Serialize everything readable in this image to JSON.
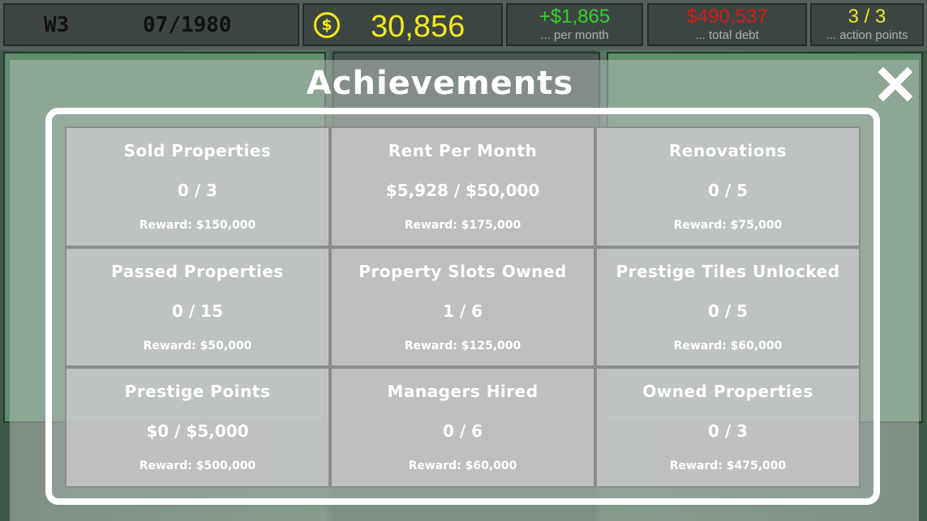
{
  "topbar": {
    "week": "W3",
    "date": "07/1980",
    "cash": "30,856",
    "cash_icon": "dollar-coin-icon",
    "income": {
      "value": "+$1,865",
      "label": "... per month"
    },
    "debt": {
      "value": "$490,537",
      "label": "... total debt"
    },
    "action_points": {
      "value": "3 / 3",
      "label": "... action points"
    }
  },
  "colors": {
    "cash": "#f2e81e",
    "income": "#2ed32e",
    "debt": "#d61c1c",
    "action_points": "#e8e82a"
  },
  "modal": {
    "title": "Achievements",
    "close_icon": "close-icon",
    "achievements": [
      {
        "name": "Sold Properties",
        "progress": "0 / 3",
        "reward": "Reward: $150,000"
      },
      {
        "name": "Rent Per Month",
        "progress": "$5,928 / $50,000",
        "reward": "Reward: $175,000"
      },
      {
        "name": "Renovations",
        "progress": "0 / 5",
        "reward": "Reward: $75,000"
      },
      {
        "name": "Passed Properties",
        "progress": "0 / 15",
        "reward": "Reward: $50,000"
      },
      {
        "name": "Property Slots Owned",
        "progress": "1 / 6",
        "reward": "Reward: $125,000"
      },
      {
        "name": "Prestige Tiles Unlocked",
        "progress": "0 / 5",
        "reward": "Reward: $60,000"
      },
      {
        "name": "Prestige Points",
        "progress": "$0 / $5,000",
        "reward": "Reward: $500,000"
      },
      {
        "name": "Managers Hired",
        "progress": "0 / 6",
        "reward": "Reward: $60,000"
      },
      {
        "name": "Owned Properties",
        "progress": "0 / 3",
        "reward": "Reward: $475,000"
      }
    ]
  }
}
